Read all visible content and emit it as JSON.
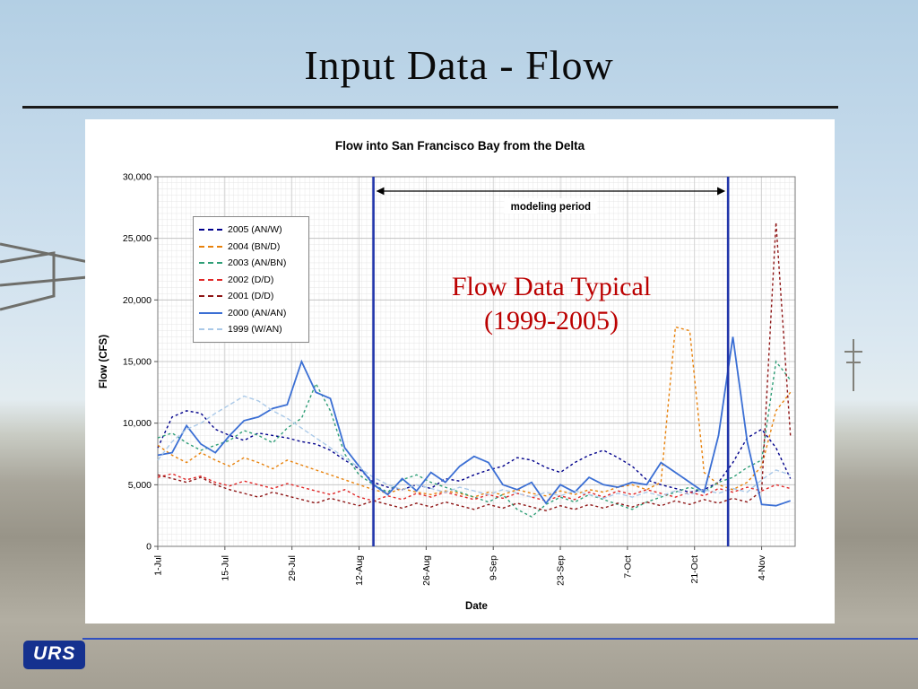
{
  "slide": {
    "title": "Input Data - Flow"
  },
  "footer": {
    "logo_text": "URS"
  },
  "chart_data": {
    "type": "line",
    "title": "Flow into San Francisco Bay from the Delta",
    "xlabel": "Date",
    "ylabel": "Flow (CFS)",
    "ylim": [
      0,
      30000
    ],
    "x_domain": [
      0,
      133
    ],
    "grid": true,
    "legend_position": "upper-left",
    "y_ticks": [
      0,
      5000,
      10000,
      15000,
      20000,
      25000,
      30000
    ],
    "y_tick_labels": [
      "0",
      "5,000",
      "10,000",
      "15,000",
      "20,000",
      "25,000",
      "30,000"
    ],
    "x_tick_days": [
      0,
      14,
      28,
      42,
      56,
      70,
      84,
      98,
      112,
      126
    ],
    "x_tick_labels": [
      "1-Jul",
      "15-Jul",
      "29-Jul",
      "12-Aug",
      "26-Aug",
      "9-Sep",
      "23-Sep",
      "7-Oct",
      "21-Oct",
      "4-Nov"
    ],
    "x_days": [
      0,
      3,
      6,
      9,
      12,
      15,
      18,
      21,
      24,
      27,
      30,
      33,
      36,
      39,
      42,
      45,
      48,
      51,
      54,
      57,
      60,
      63,
      66,
      69,
      72,
      75,
      78,
      81,
      84,
      87,
      90,
      93,
      96,
      99,
      102,
      105,
      108,
      111,
      114,
      117,
      120,
      123,
      126,
      129,
      132
    ],
    "series": [
      {
        "name": "2005 (AN/W)",
        "color": "#00008b",
        "dash": "3 3",
        "values": [
          8000,
          10500,
          11000,
          10800,
          9500,
          9000,
          8600,
          9200,
          9000,
          8800,
          8500,
          8300,
          7800,
          7000,
          6300,
          5200,
          4800,
          4600,
          5000,
          4700,
          5500,
          5300,
          5800,
          6200,
          6500,
          7200,
          7000,
          6400,
          6000,
          6800,
          7400,
          7800,
          7200,
          6500,
          5400,
          5000,
          4700,
          4400,
          4600,
          5200,
          6800,
          8800,
          9500,
          8000,
          5500
        ]
      },
      {
        "name": "2004 (BN/D)",
        "color": "#e8820c",
        "dash": "3 3",
        "values": [
          8200,
          7400,
          6800,
          7600,
          7000,
          6500,
          7200,
          6800,
          6300,
          7000,
          6600,
          6200,
          5800,
          5400,
          5000,
          4600,
          4300,
          4700,
          4400,
          4200,
          4500,
          4300,
          4000,
          4400,
          4200,
          4600,
          4300,
          4100,
          4500,
          4200,
          4600,
          4400,
          4800,
          5000,
          4600,
          5200,
          17800,
          17500,
          6000,
          5000,
          4600,
          5200,
          6500,
          11000,
          12500
        ]
      },
      {
        "name": "2003 (AN/BN)",
        "color": "#2f9e77",
        "dash": "3 3",
        "values": [
          8800,
          9200,
          8400,
          7800,
          8200,
          8600,
          9400,
          9000,
          8400,
          9600,
          10400,
          13200,
          11000,
          7500,
          5800,
          5000,
          4400,
          5400,
          5800,
          5200,
          4800,
          4400,
          4000,
          3600,
          4200,
          3000,
          2400,
          3400,
          4000,
          3600,
          4200,
          3800,
          3400,
          3000,
          3600,
          4000,
          4400,
          4800,
          4400,
          5200,
          5600,
          6400,
          7000,
          15000,
          13500
        ]
      },
      {
        "name": "2002 (D/D)",
        "color": "#e02828",
        "dash": "3 3",
        "values": [
          5600,
          5900,
          5400,
          5700,
          5200,
          4900,
          5300,
          5000,
          4700,
          5100,
          4800,
          4500,
          4200,
          4600,
          4000,
          3700,
          4100,
          3800,
          4300,
          4000,
          4400,
          4100,
          3800,
          4200,
          3900,
          4300,
          4000,
          3700,
          4100,
          3800,
          4400,
          4000,
          4500,
          4200,
          4600,
          4300,
          4000,
          4400,
          4100,
          4700,
          4400,
          4800,
          4500,
          5000,
          4700
        ]
      },
      {
        "name": "2001 (D/D)",
        "color": "#8e1515",
        "dash": "3 3",
        "values": [
          5800,
          5500,
          5200,
          5600,
          5000,
          4600,
          4300,
          4000,
          4400,
          4100,
          3800,
          3500,
          3900,
          3600,
          3300,
          3700,
          3400,
          3100,
          3500,
          3200,
          3600,
          3300,
          3000,
          3400,
          3100,
          3500,
          3200,
          2900,
          3300,
          3000,
          3400,
          3100,
          3500,
          3200,
          3600,
          3300,
          3700,
          3400,
          3800,
          3500,
          3900,
          3600,
          4500,
          26300,
          9000
        ]
      },
      {
        "name": "2000 (AN/AN)",
        "color": "#3b6fd4",
        "dash": "",
        "values": [
          7400,
          7600,
          9800,
          8300,
          7600,
          9000,
          10200,
          10500,
          11200,
          11500,
          15000,
          12500,
          12000,
          8000,
          6500,
          5000,
          4200,
          5500,
          4500,
          6000,
          5200,
          6500,
          7300,
          6800,
          5000,
          4600,
          5200,
          3500,
          5000,
          4400,
          5600,
          5000,
          4800,
          5200,
          5000,
          6800,
          6000,
          5200,
          4400,
          9000,
          17000,
          8500,
          3400,
          3300,
          3700
        ]
      },
      {
        "name": "1999 (W/AN)",
        "color": "#aac9e8",
        "dash": "5 3",
        "values": [
          7000,
          8500,
          9500,
          10000,
          10800,
          11500,
          12200,
          11800,
          11000,
          10400,
          9600,
          8800,
          8000,
          7200,
          6400,
          5600,
          5000,
          4600,
          5000,
          4700,
          4400,
          4800,
          4500,
          4200,
          4600,
          4300,
          4000,
          4400,
          4100,
          4500,
          4200,
          3900,
          4300,
          4000,
          4400,
          4100,
          4500,
          4200,
          4600,
          4300,
          4700,
          4400,
          5400,
          6200,
          5800
        ]
      }
    ],
    "annotations": {
      "modeling_period": {
        "label": "modeling period",
        "start_day": 45,
        "end_day": 119,
        "line_color": "#2236aa"
      },
      "typical": {
        "line1": "Flow Data Typical",
        "line2": "(1999-2005)",
        "color": "#bb0000"
      }
    }
  }
}
